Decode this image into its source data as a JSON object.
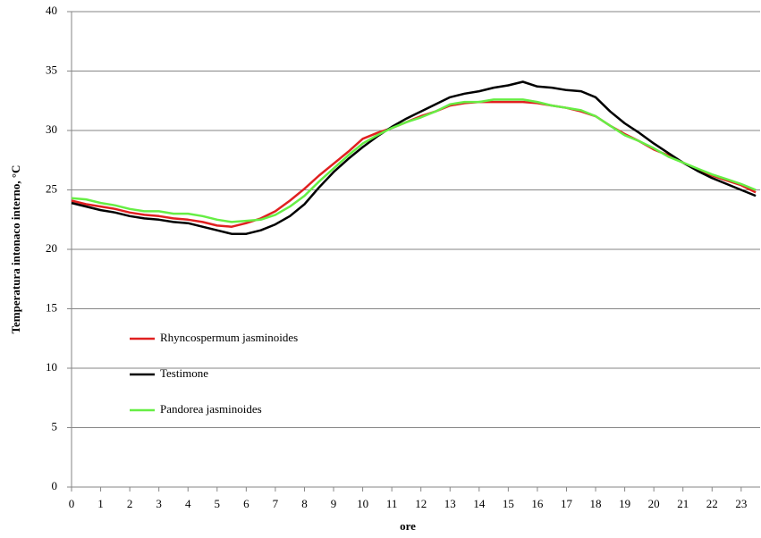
{
  "chart_data": {
    "type": "line",
    "y_label": "Temperatura intonaco interno, °C",
    "x_label": "ore",
    "x": [
      0,
      0.5,
      1,
      1.5,
      2,
      2.5,
      3,
      3.5,
      4,
      4.5,
      5,
      5.5,
      6,
      6.5,
      7,
      7.5,
      8,
      8.5,
      9,
      9.5,
      10,
      10.5,
      11,
      11.5,
      12,
      12.5,
      13,
      13.5,
      14,
      14.5,
      15,
      15.5,
      16,
      16.5,
      17,
      17.5,
      18,
      18.5,
      19,
      19.5,
      20,
      20.5,
      21,
      21.5,
      22,
      22.5,
      23,
      23.5
    ],
    "series": [
      {
        "name": "Rhyncospermum jasminoides",
        "color": "#e02020",
        "values": [
          24.1,
          23.8,
          23.6,
          23.4,
          23.1,
          22.9,
          22.8,
          22.6,
          22.5,
          22.3,
          22.0,
          21.9,
          22.2,
          22.6,
          23.2,
          24.1,
          25.1,
          26.2,
          27.2,
          28.2,
          29.3,
          29.8,
          30.2,
          30.7,
          31.2,
          31.6,
          32.1,
          32.3,
          32.4,
          32.4,
          32.4,
          32.4,
          32.3,
          32.1,
          31.9,
          31.6,
          31.2,
          30.4,
          29.7,
          29.1,
          28.4,
          27.9,
          27.3,
          26.7,
          26.2,
          25.8,
          25.4,
          24.8
        ]
      },
      {
        "name": "Testimone",
        "color": "#000000",
        "values": [
          23.9,
          23.6,
          23.3,
          23.1,
          22.8,
          22.6,
          22.5,
          22.3,
          22.2,
          21.9,
          21.6,
          21.3,
          21.3,
          21.6,
          22.1,
          22.8,
          23.8,
          25.2,
          26.5,
          27.6,
          28.6,
          29.5,
          30.3,
          31.0,
          31.6,
          32.2,
          32.8,
          33.1,
          33.3,
          33.6,
          33.8,
          34.1,
          33.7,
          33.6,
          33.4,
          33.3,
          32.8,
          31.6,
          30.6,
          29.8,
          28.9,
          28.1,
          27.3,
          26.6,
          26.0,
          25.5,
          25.0,
          24.5
        ]
      },
      {
        "name": "Pandorea jasminoides",
        "color": "#66ee44",
        "values": [
          24.3,
          24.2,
          23.9,
          23.7,
          23.4,
          23.2,
          23.2,
          23.0,
          23.0,
          22.8,
          22.5,
          22.3,
          22.4,
          22.5,
          22.9,
          23.6,
          24.5,
          25.7,
          26.8,
          27.9,
          28.9,
          29.6,
          30.2,
          30.7,
          31.1,
          31.6,
          32.2,
          32.4,
          32.4,
          32.6,
          32.6,
          32.6,
          32.4,
          32.1,
          31.9,
          31.7,
          31.2,
          30.4,
          29.6,
          29.1,
          28.5,
          27.8,
          27.3,
          26.8,
          26.3,
          25.9,
          25.5,
          25.0
        ]
      }
    ],
    "xlim": [
      0,
      23.65
    ],
    "xticks": [
      0,
      1,
      2,
      3,
      4,
      5,
      6,
      7,
      8,
      9,
      10,
      11,
      12,
      13,
      14,
      15,
      16,
      17,
      18,
      19,
      20,
      21,
      22,
      23
    ],
    "ylim": [
      0,
      40
    ],
    "yticks": [
      0,
      5,
      10,
      15,
      20,
      25,
      30,
      35,
      40
    ],
    "grid": true,
    "legend": "left"
  }
}
